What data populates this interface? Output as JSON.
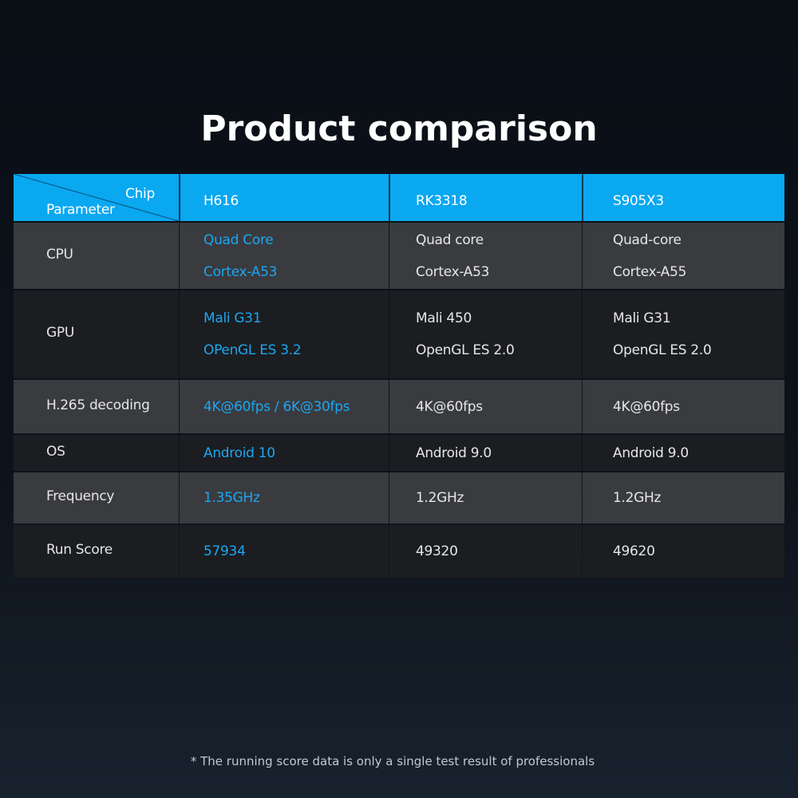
{
  "header": {
    "title": "Product comparison"
  },
  "table": {
    "corner": {
      "top": "Chip",
      "bottom": "Parameter"
    },
    "columns": [
      "H616",
      "RK3318",
      "S905X3"
    ],
    "rows": [
      {
        "label": "CPU",
        "cells": [
          [
            "Quad Core",
            "Cortex-A53"
          ],
          [
            "Quad core",
            "Cortex-A53"
          ],
          [
            "Quad-core",
            "Cortex-A55"
          ]
        ]
      },
      {
        "label": "GPU",
        "cells": [
          [
            "Mali G31",
            "OPenGL ES 3.2"
          ],
          [
            "Mali 450",
            "OpenGL ES 2.0"
          ],
          [
            "Mali G31",
            "OpenGL ES 2.0"
          ]
        ]
      },
      {
        "label": "H.265 decoding",
        "cells": [
          [
            "4K@60fps / 6K@30fps"
          ],
          [
            "4K@60fps"
          ],
          [
            "4K@60fps"
          ]
        ]
      },
      {
        "label": "OS",
        "cells": [
          [
            "Android 10"
          ],
          [
            "Android 9.0"
          ],
          [
            "Android 9.0"
          ]
        ]
      },
      {
        "label": "Frequency",
        "cells": [
          [
            "1.35GHz"
          ],
          [
            "1.2GHz"
          ],
          [
            "1.2GHz"
          ]
        ]
      },
      {
        "label": "Run Score",
        "cells": [
          [
            "57934"
          ],
          [
            "49320"
          ],
          [
            "49620"
          ]
        ]
      }
    ]
  },
  "footer": {
    "note": "* The running score data is only a single test result of professionals"
  }
}
